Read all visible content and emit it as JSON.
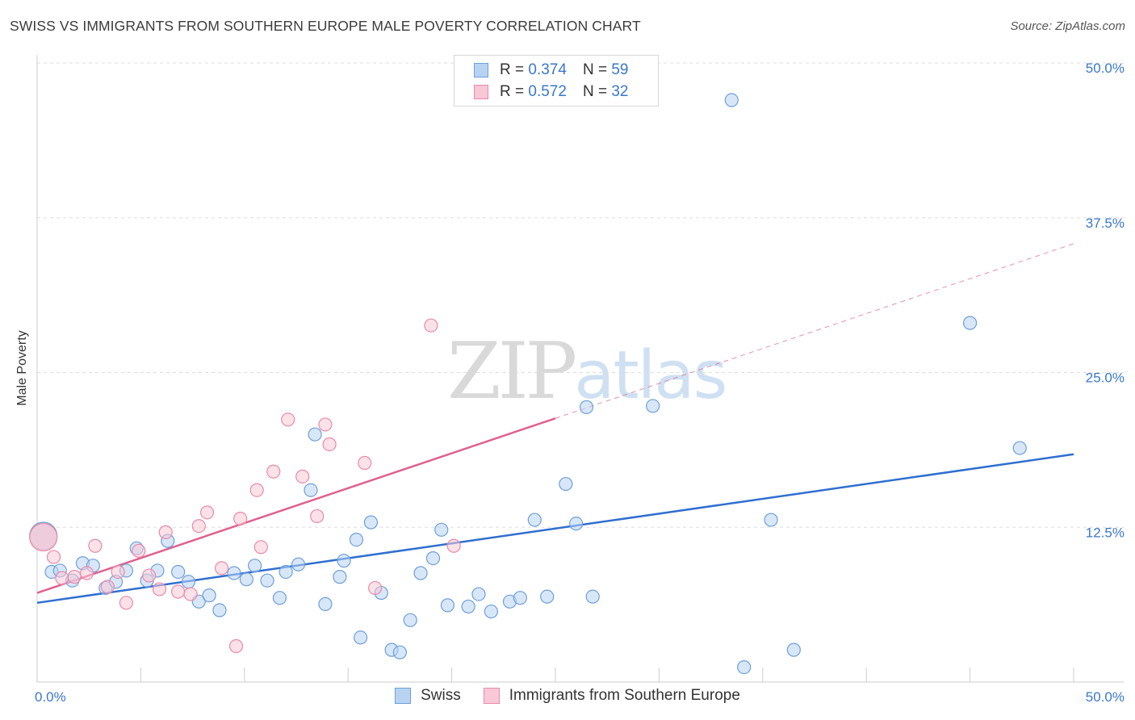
{
  "header": {
    "title": "SWISS VS IMMIGRANTS FROM SOUTHERN EUROPE MALE POVERTY CORRELATION CHART",
    "source": "Source: ZipAtlas.com"
  },
  "watermark": {
    "zip": "ZIP",
    "atlas": "atlas"
  },
  "legend": {
    "rows": [
      {
        "r_label": "R =",
        "r_value": "0.374",
        "n_label": "N =",
        "n_value": "59"
      },
      {
        "r_label": "R =",
        "r_value": "0.572",
        "n_label": "N =",
        "n_value": "32"
      }
    ]
  },
  "colors": {
    "swiss_fill": "#b8d3f2",
    "swiss_stroke": "#6e9fd8",
    "swiss_line": "#2f6fd0",
    "immig_fill": "#f8c8d6",
    "immig_stroke": "#e98aaa",
    "immig_line": "#e0608e",
    "tick_label": "#3a78c9",
    "grid": "#dddddd"
  },
  "chart_data": {
    "type": "scatter",
    "ylabel": "Male Poverty",
    "xlim": [
      0,
      50
    ],
    "ylim": [
      0,
      50
    ],
    "x_tick_labels": [
      "0.0%",
      "50.0%"
    ],
    "y_ticks": [
      {
        "value": 12.5,
        "label": "12.5%"
      },
      {
        "value": 25,
        "label": "25.0%"
      },
      {
        "value": 37.5,
        "label": "37.5%"
      },
      {
        "value": 50,
        "label": "50.0%"
      }
    ],
    "grid": true,
    "legend_position": "top-center",
    "series": [
      {
        "name": "Swiss",
        "points": [
          [
            0.3,
            11.8
          ],
          [
            0.7,
            8.9
          ],
          [
            1.1,
            9.0
          ],
          [
            1.7,
            8.2
          ],
          [
            2.2,
            9.6
          ],
          [
            2.7,
            9.4
          ],
          [
            3.3,
            7.6
          ],
          [
            3.8,
            8.1
          ],
          [
            4.3,
            9.0
          ],
          [
            4.8,
            10.8
          ],
          [
            5.3,
            8.2
          ],
          [
            5.8,
            9.0
          ],
          [
            6.3,
            11.4
          ],
          [
            6.8,
            8.9
          ],
          [
            7.3,
            8.1
          ],
          [
            7.8,
            6.5
          ],
          [
            8.3,
            7.0
          ],
          [
            8.8,
            5.8
          ],
          [
            9.5,
            8.8
          ],
          [
            10.1,
            8.3
          ],
          [
            10.5,
            9.4
          ],
          [
            11.1,
            8.2
          ],
          [
            11.7,
            6.8
          ],
          [
            12.0,
            8.9
          ],
          [
            12.6,
            9.5
          ],
          [
            13.2,
            15.5
          ],
          [
            13.4,
            20.0
          ],
          [
            13.9,
            6.3
          ],
          [
            14.6,
            8.5
          ],
          [
            14.8,
            9.8
          ],
          [
            15.4,
            11.5
          ],
          [
            15.6,
            3.6
          ],
          [
            16.1,
            12.9
          ],
          [
            16.6,
            7.2
          ],
          [
            17.1,
            2.6
          ],
          [
            17.5,
            2.4
          ],
          [
            18.0,
            5.0
          ],
          [
            18.5,
            8.8
          ],
          [
            19.1,
            10.0
          ],
          [
            19.5,
            12.3
          ],
          [
            19.8,
            6.2
          ],
          [
            20.8,
            6.1
          ],
          [
            21.3,
            7.1
          ],
          [
            21.9,
            5.7
          ],
          [
            22.8,
            6.5
          ],
          [
            23.3,
            6.8
          ],
          [
            24.0,
            13.1
          ],
          [
            24.6,
            6.9
          ],
          [
            25.5,
            16.0
          ],
          [
            26.0,
            12.8
          ],
          [
            26.5,
            22.2
          ],
          [
            26.8,
            6.9
          ],
          [
            29.7,
            22.3
          ],
          [
            33.5,
            47.0
          ],
          [
            34.1,
            1.2
          ],
          [
            35.4,
            13.1
          ],
          [
            36.5,
            2.6
          ],
          [
            45.0,
            29.0
          ],
          [
            47.4,
            18.9
          ]
        ]
      },
      {
        "name": "Immigrants from Southern Europe",
        "points": [
          [
            0.8,
            10.1
          ],
          [
            1.2,
            8.4
          ],
          [
            1.8,
            8.5
          ],
          [
            2.4,
            8.8
          ],
          [
            2.8,
            11.0
          ],
          [
            3.4,
            7.7
          ],
          [
            3.9,
            8.9
          ],
          [
            4.3,
            6.4
          ],
          [
            4.9,
            10.6
          ],
          [
            5.4,
            8.6
          ],
          [
            5.9,
            7.5
          ],
          [
            6.2,
            12.1
          ],
          [
            6.8,
            7.3
          ],
          [
            7.4,
            7.1
          ],
          [
            7.8,
            12.6
          ],
          [
            8.2,
            13.7
          ],
          [
            8.9,
            9.2
          ],
          [
            9.6,
            2.9
          ],
          [
            9.8,
            13.2
          ],
          [
            10.6,
            15.5
          ],
          [
            10.8,
            10.9
          ],
          [
            11.4,
            17.0
          ],
          [
            12.1,
            21.2
          ],
          [
            12.8,
            16.6
          ],
          [
            13.5,
            13.4
          ],
          [
            13.9,
            20.8
          ],
          [
            14.1,
            19.2
          ],
          [
            15.8,
            17.7
          ],
          [
            16.3,
            7.6
          ],
          [
            19.0,
            28.8
          ],
          [
            20.1,
            11.0
          ],
          [
            0.3,
            11.7
          ]
        ]
      }
    ],
    "trendlines": [
      {
        "series": "Swiss",
        "x": [
          0,
          50
        ],
        "y": [
          6.4,
          18.4
        ],
        "dashed_from": null
      },
      {
        "series": "Immigrants from Southern Europe",
        "x": [
          0,
          50
        ],
        "y": [
          7.2,
          35.4
        ],
        "solid_until_x": 25
      }
    ]
  }
}
